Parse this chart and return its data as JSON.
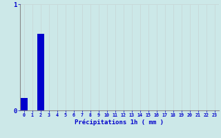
{
  "values": [
    0.12,
    0,
    0.72,
    0,
    0,
    0,
    0,
    0,
    0,
    0,
    0,
    0,
    0,
    0,
    0,
    0,
    0,
    0,
    0,
    0,
    0,
    0,
    0,
    0
  ],
  "bar_color": "#0000cc",
  "background_color": "#cce8e8",
  "grid_color": "#b8d4d4",
  "axis_label_color": "#0000cc",
  "tick_color": "#0000cc",
  "xlabel": "Précipitations 1h ( mm )",
  "ylim": [
    0,
    1.0
  ],
  "xlim": [
    -0.5,
    23.5
  ],
  "yticks": [
    0,
    1
  ],
  "xtick_labels": [
    "0",
    "1",
    "2",
    "3",
    "4",
    "5",
    "6",
    "7",
    "8",
    "9",
    "10",
    "11",
    "12",
    "13",
    "14",
    "15",
    "16",
    "17",
    "18",
    "19",
    "20",
    "21",
    "22",
    "23"
  ],
  "bar_width": 0.85,
  "vgrid_color": "#c8d8d8",
  "hgrid_color": "#c8d8d8"
}
